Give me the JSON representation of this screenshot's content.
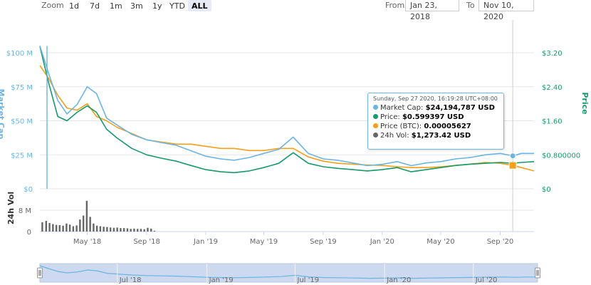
{
  "zoom": {
    "label": "Zoom",
    "buttons": [
      "1d",
      "7d",
      "1m",
      "3m",
      "1y",
      "YTD",
      "ALL"
    ],
    "active": "ALL"
  },
  "range": {
    "from_label": "From",
    "from_value": "Jan 23, 2018",
    "to_label": "To",
    "to_value": "Nov 10, 2020"
  },
  "tooltip": {
    "date": "Sunday, Sep 27 2020, 16:19:28 UTC+08:00",
    "rows": [
      {
        "label": "Market Cap:",
        "value": "$24,194,787 USD",
        "color": "#6cb4e4"
      },
      {
        "label": "Price:",
        "value": "$0.599397 USD",
        "color": "#169a6a"
      },
      {
        "label": "Price (BTC):",
        "value": "0.00005627",
        "color": "#f5a01a"
      },
      {
        "label": "24h Vol:",
        "value": "$1,273.42 USD",
        "color": "#666666"
      }
    ]
  },
  "colors": {
    "market_cap": "#6cb4e4",
    "price_usd": "#169a6a",
    "price_btc": "#f5a01a",
    "volume": "#666666",
    "navigator_fill": "#cdd9ef"
  },
  "chart_data": [
    {
      "type": "line",
      "ylabel_left": "Market Cap",
      "ylabel_right": "Price",
      "yticks_left": [
        "$100 M",
        "$75 M",
        "$50 M",
        "$25 M",
        "$0"
      ],
      "yticks_right": [
        "$3.20",
        "$2.40",
        "$1.60",
        "$0.800000",
        "$0"
      ],
      "ylim_left": [
        0,
        100000000
      ],
      "ylim_right": [
        0,
        3.2
      ],
      "xticks": [
        "May '18",
        "Sep '18",
        "Jan '19",
        "May '19",
        "Sep '19",
        "Jan '20",
        "May '20",
        "Sep '20"
      ],
      "x": [
        "2018-01-23",
        "2018-02-10",
        "2018-03-01",
        "2018-03-20",
        "2018-04-10",
        "2018-05-01",
        "2018-05-20",
        "2018-06-10",
        "2018-07-01",
        "2018-08-01",
        "2018-09-01",
        "2018-10-01",
        "2018-11-01",
        "2018-12-01",
        "2019-01-01",
        "2019-02-01",
        "2019-03-01",
        "2019-04-01",
        "2019-05-01",
        "2019-06-01",
        "2019-07-01",
        "2019-08-01",
        "2019-09-01",
        "2019-10-01",
        "2019-11-01",
        "2019-12-01",
        "2020-01-01",
        "2020-02-01",
        "2020-03-01",
        "2020-04-01",
        "2020-05-01",
        "2020-06-01",
        "2020-07-01",
        "2020-08-01",
        "2020-09-01",
        "2020-09-27",
        "2020-10-15",
        "2020-11-10"
      ],
      "series": [
        {
          "name": "Market Cap",
          "axis": "left",
          "values": [
            105000000,
            85000000,
            65000000,
            55000000,
            62000000,
            75000000,
            70000000,
            52000000,
            47000000,
            40000000,
            36000000,
            34000000,
            32000000,
            28000000,
            24000000,
            22000000,
            21000000,
            23000000,
            26000000,
            29000000,
            38000000,
            26000000,
            22000000,
            21000000,
            19000000,
            17000000,
            18000000,
            20000000,
            17000000,
            19000000,
            20000000,
            22000000,
            23000000,
            25000000,
            26000000,
            24194787,
            26000000,
            26000000
          ]
        },
        {
          "name": "Price",
          "axis": "right",
          "values": [
            3.35,
            2.5,
            1.7,
            1.6,
            1.8,
            1.95,
            1.8,
            1.4,
            1.2,
            0.95,
            0.8,
            0.72,
            0.65,
            0.55,
            0.45,
            0.4,
            0.38,
            0.42,
            0.5,
            0.6,
            0.85,
            0.6,
            0.52,
            0.48,
            0.45,
            0.42,
            0.45,
            0.5,
            0.4,
            0.45,
            0.5,
            0.55,
            0.58,
            0.6,
            0.62,
            0.599397,
            0.62,
            0.64
          ]
        },
        {
          "name": "Price (BTC)",
          "axis": "right",
          "values": [
            2.9,
            2.6,
            2.2,
            1.9,
            1.85,
            2.0,
            1.7,
            1.6,
            1.45,
            1.3,
            1.15,
            1.1,
            1.05,
            1.05,
            1.0,
            0.95,
            0.95,
            0.9,
            0.9,
            0.95,
            0.95,
            0.75,
            0.65,
            0.6,
            0.58,
            0.56,
            0.55,
            0.52,
            0.5,
            0.5,
            0.52,
            0.55,
            0.58,
            0.62,
            0.6,
            0.55,
            0.5,
            0.42
          ]
        }
      ]
    },
    {
      "type": "bar",
      "ylabel": "24h Vol",
      "yticks": [
        "8 M",
        "0"
      ],
      "ylim": [
        0,
        12000000
      ],
      "x": [
        "2018-01-28",
        "2018-02-05",
        "2018-02-12",
        "2018-02-19",
        "2018-02-26",
        "2018-03-05",
        "2018-03-12",
        "2018-03-19",
        "2018-03-26",
        "2018-04-02",
        "2018-04-09",
        "2018-04-16",
        "2018-04-23",
        "2018-04-30",
        "2018-05-07",
        "2018-05-14",
        "2018-05-21",
        "2018-05-28",
        "2018-06-04",
        "2018-06-11",
        "2018-06-18",
        "2018-06-25",
        "2018-07-02",
        "2018-07-09",
        "2018-07-16",
        "2018-07-23",
        "2018-07-30",
        "2018-08-06",
        "2018-08-13",
        "2018-08-20",
        "2018-08-27",
        "2018-09-03",
        "2018-09-10",
        "2018-09-17"
      ],
      "values": [
        3500000,
        4000000,
        3200000,
        2800000,
        2500000,
        2400000,
        2200000,
        3000000,
        2600000,
        2000000,
        2300000,
        4500000,
        6000000,
        11500000,
        5500000,
        3000000,
        2200000,
        2000000,
        1800000,
        1700000,
        1500000,
        1400000,
        1500000,
        1300000,
        1300000,
        1200000,
        1000000,
        1100000,
        1000000,
        1000000,
        900000,
        1400000,
        1100000,
        300000
      ]
    }
  ],
  "navigator": {
    "xticks": [
      "Jul '18",
      "Jan '19",
      "Jul '19",
      "Jan '20",
      "Jul '20"
    ]
  }
}
